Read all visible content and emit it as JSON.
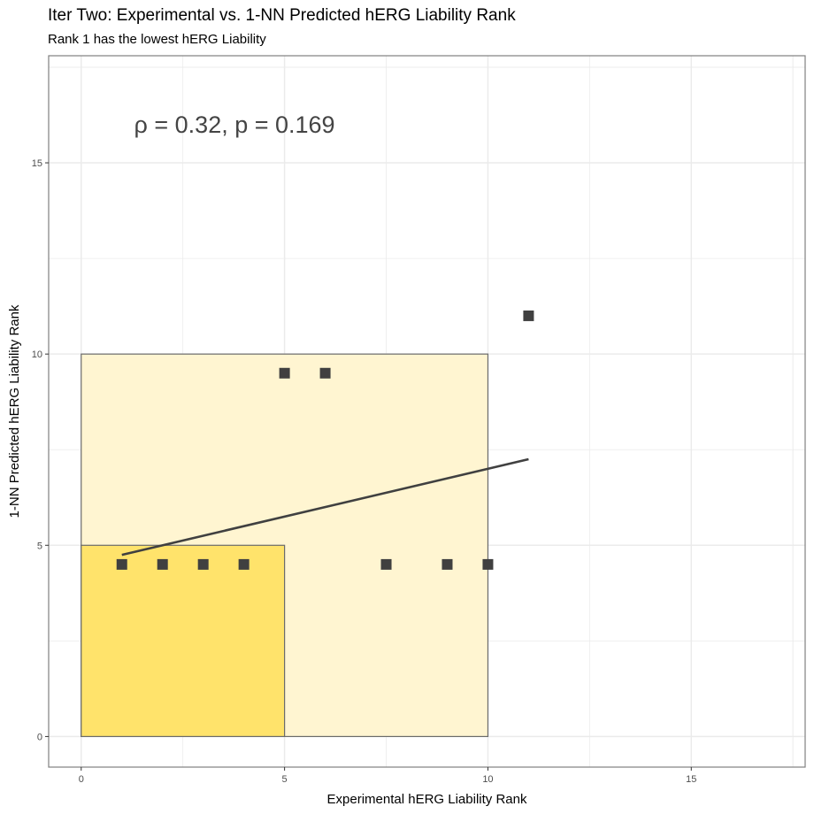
{
  "chart_data": {
    "type": "scatter",
    "title": "Iter Two: Experimental vs. 1-NN Predicted hERG Liability Rank",
    "subtitle": "Rank 1 has the lowest hERG Liability",
    "xlabel": "Experimental hERG Liability Rank",
    "ylabel": "1-NN Predicted hERG Liability Rank",
    "xlim": [
      -0.8,
      17.8
    ],
    "ylim": [
      -0.8,
      17.8
    ],
    "x_ticks": [
      0,
      5,
      10,
      15
    ],
    "y_ticks": [
      0,
      5,
      10,
      15
    ],
    "grid": true,
    "annotation": {
      "text": "ρ = 0.32, p = 0.169",
      "x": 1.3,
      "y": 16
    },
    "regions": [
      {
        "x0": 0,
        "x1": 10,
        "y0": 0,
        "y1": 10,
        "fill": "#FFF5D1",
        "stroke": "#6b6b6b"
      },
      {
        "x0": 0,
        "x1": 5,
        "y0": 0,
        "y1": 5,
        "fill": "#FFE36B",
        "stroke": "#6b6b6b"
      }
    ],
    "points": [
      {
        "x": 1,
        "y": 4.5
      },
      {
        "x": 2,
        "y": 4.5
      },
      {
        "x": 3,
        "y": 4.5
      },
      {
        "x": 4,
        "y": 4.5
      },
      {
        "x": 5,
        "y": 9.5
      },
      {
        "x": 6,
        "y": 9.5
      },
      {
        "x": 7.5,
        "y": 4.5
      },
      {
        "x": 9,
        "y": 4.5
      },
      {
        "x": 10,
        "y": 4.5
      },
      {
        "x": 11,
        "y": 11
      }
    ],
    "trend_line": {
      "x": [
        1,
        11
      ],
      "y": [
        4.75,
        7.25
      ]
    },
    "colors": {
      "point": "#404040",
      "line": "#404040",
      "grid": "#ebebeb",
      "panel_border": "#808080"
    }
  }
}
